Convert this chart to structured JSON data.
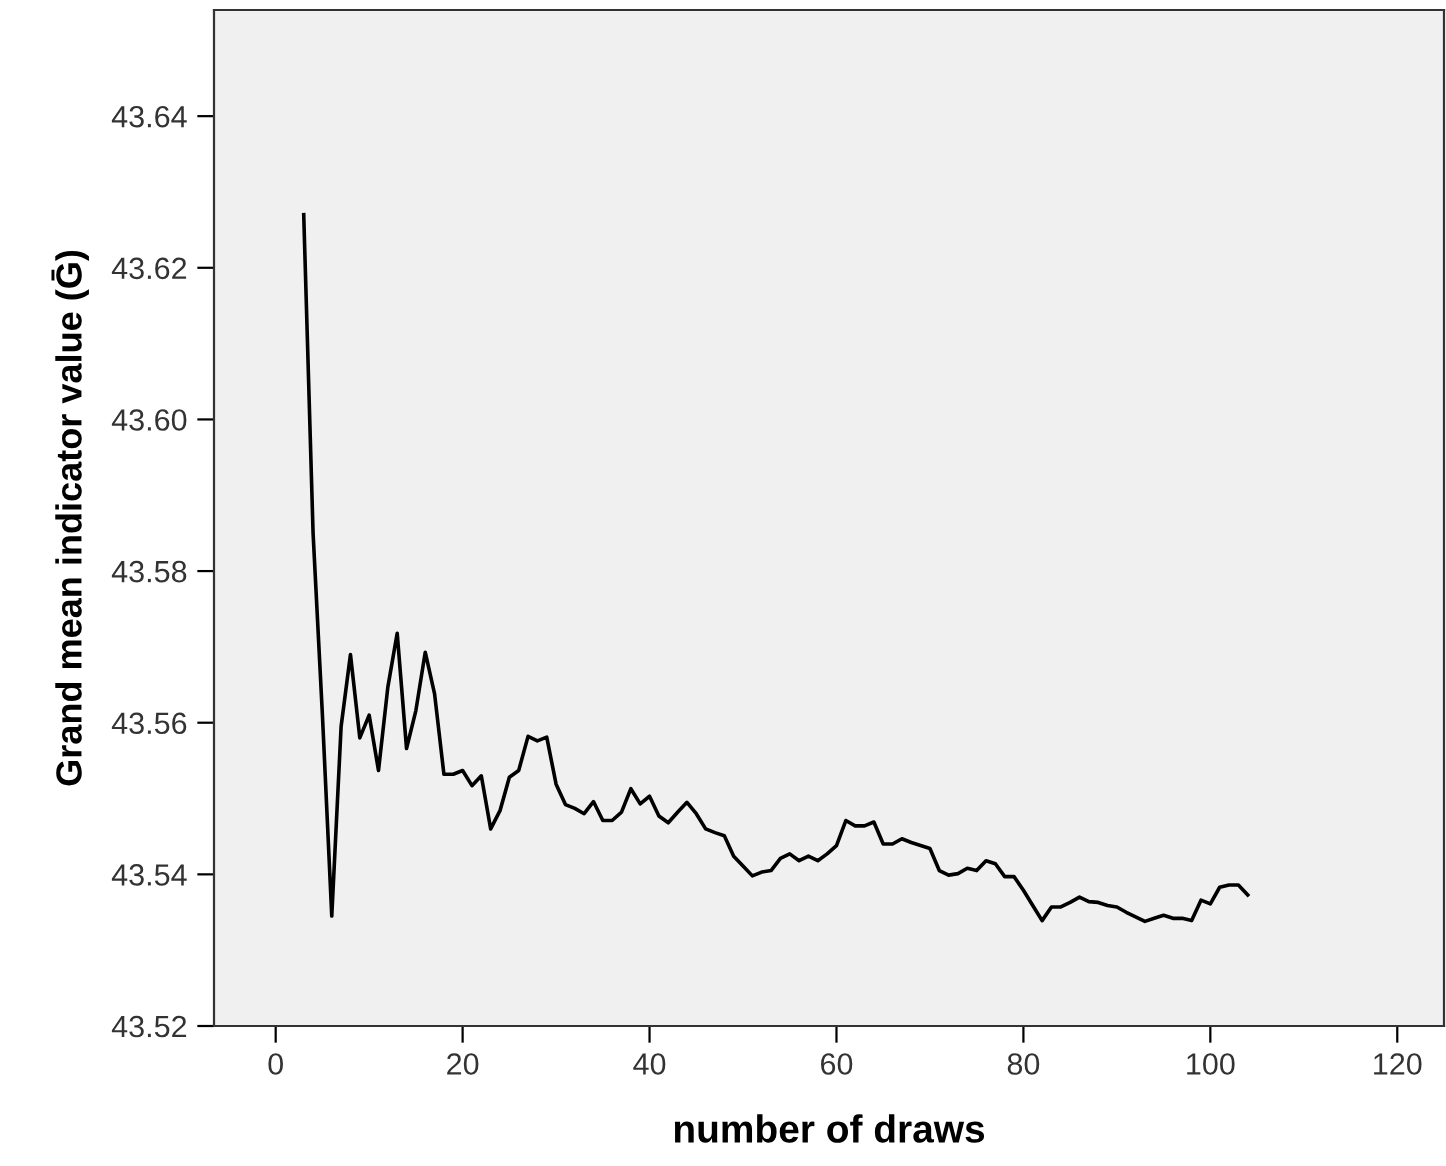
{
  "chart_data": {
    "type": "line",
    "xlabel": "number of draws",
    "ylabel": "Grand mean indicator value (Ḡ)",
    "xlim": [
      -6.6,
      125
    ],
    "ylim": [
      43.52,
      43.654
    ],
    "xticks": [
      0,
      20,
      40,
      60,
      80,
      100,
      120
    ],
    "yticks": [
      {
        "value": 43.52,
        "label": "43.52"
      },
      {
        "value": 43.54,
        "label": "43.54"
      },
      {
        "value": 43.56,
        "label": "43.56"
      },
      {
        "value": 43.58,
        "label": "43.58"
      },
      {
        "value": 43.6,
        "label": "43.60"
      },
      {
        "value": 43.62,
        "label": "43.62"
      },
      {
        "value": 43.64,
        "label": "43.64"
      }
    ],
    "grid": false,
    "marker": "none",
    "line_style": "solid",
    "series": [
      {
        "color": "#000000",
        "x": [
          3,
          4,
          5,
          6,
          7,
          8,
          9,
          10,
          11,
          12,
          13,
          14,
          15,
          16,
          17,
          18,
          19,
          20,
          21,
          22,
          23,
          24,
          25,
          26,
          27,
          28,
          29,
          30,
          31,
          32,
          33,
          34,
          35,
          36,
          37,
          38,
          39,
          40,
          41,
          42,
          43,
          44,
          45,
          46,
          47,
          48,
          49,
          50,
          51,
          52,
          53,
          54,
          55,
          56,
          57,
          58,
          59,
          60,
          61,
          62,
          63,
          64,
          65,
          66,
          67,
          68,
          69,
          70,
          71,
          72,
          73,
          74,
          75,
          76,
          77,
          78,
          79,
          80,
          81,
          82,
          83,
          84,
          85,
          86,
          87,
          88,
          89,
          90,
          91,
          92,
          93,
          94,
          95,
          96,
          97,
          98,
          99,
          100,
          101,
          102,
          103,
          104
        ],
        "values": [
          43.627,
          43.585,
          43.561,
          43.5345,
          43.5595,
          43.569,
          43.558,
          43.561,
          43.5537,
          43.5647,
          43.5718,
          43.5566,
          43.5616,
          43.5693,
          43.5638,
          43.5532,
          43.5532,
          43.5537,
          43.5517,
          43.553,
          43.546,
          43.5484,
          43.5528,
          43.5537,
          43.5582,
          43.5576,
          43.5581,
          43.5519,
          43.5492,
          43.5487,
          43.548,
          43.5496,
          43.5471,
          43.5471,
          43.5482,
          43.5513,
          43.5493,
          43.5503,
          43.5477,
          43.5468,
          43.5482,
          43.5495,
          43.548,
          43.546,
          43.5455,
          43.5451,
          43.5424,
          43.5411,
          43.5398,
          43.5403,
          43.5405,
          43.5421,
          43.5427,
          43.5418,
          43.5424,
          43.5418,
          43.5427,
          43.5438,
          43.5471,
          43.5464,
          43.5464,
          43.5469,
          43.544,
          43.544,
          43.5447,
          43.5442,
          43.5438,
          43.5434,
          43.5405,
          43.5399,
          43.5401,
          43.5408,
          43.5405,
          43.5418,
          43.5414,
          43.5397,
          43.5397,
          43.5379,
          43.5359,
          43.5339,
          43.5357,
          43.5357,
          43.5363,
          43.537,
          43.5364,
          43.5363,
          43.5359,
          43.5357,
          43.535,
          43.5344,
          43.5338,
          43.5342,
          43.5346,
          43.5342,
          43.5342,
          43.5339,
          43.5366,
          43.5361,
          43.5383,
          43.5386,
          43.5386,
          43.5373
        ]
      }
    ]
  }
}
